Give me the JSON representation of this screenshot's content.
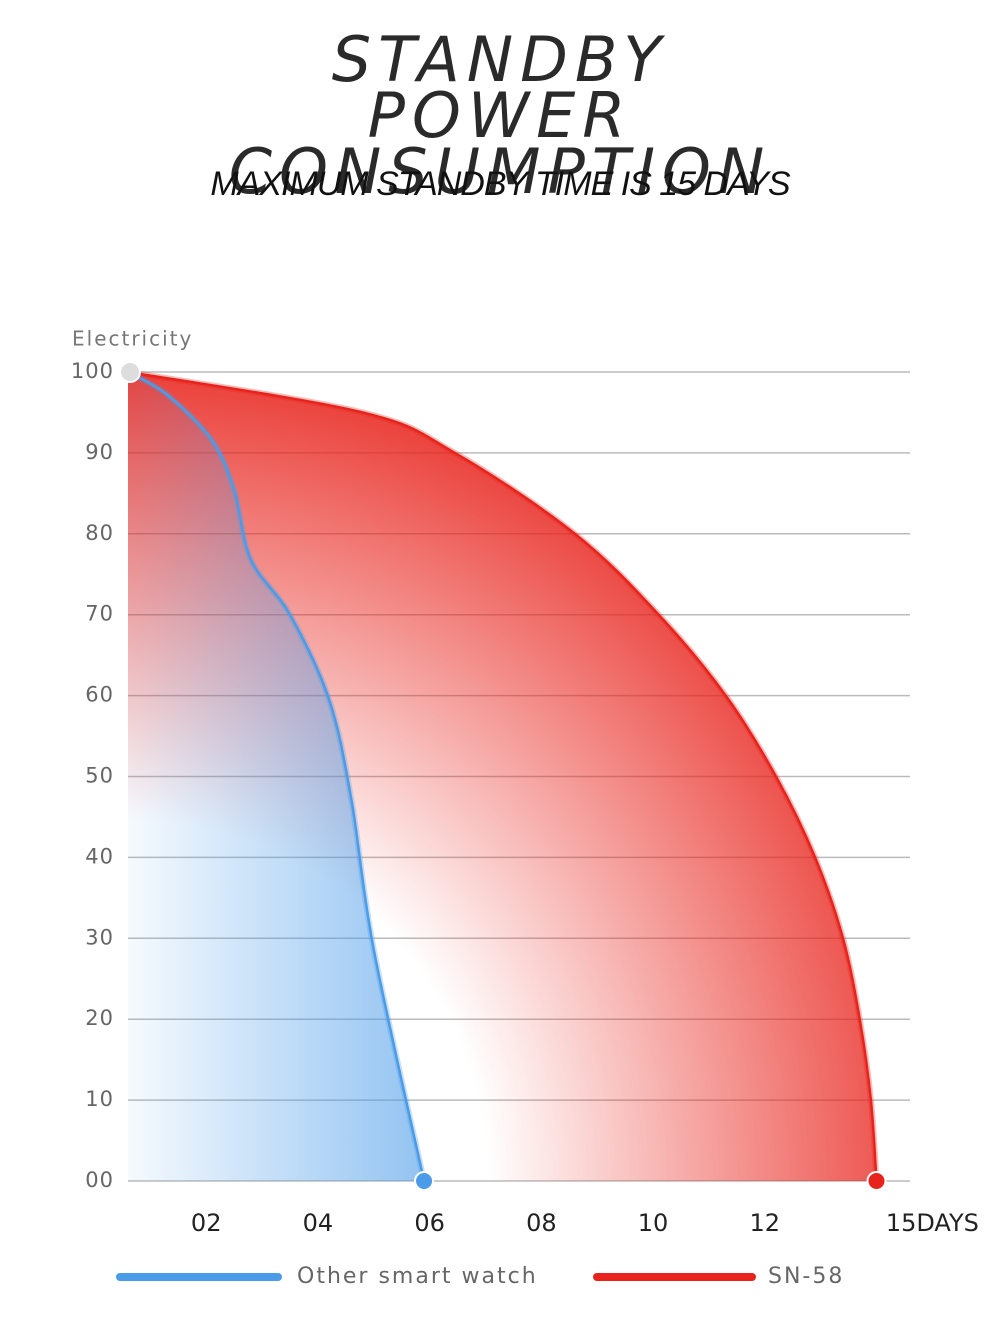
{
  "chart_data": {
    "type": "area",
    "title": "STANDBY POWER CONSUMPTION",
    "subtitle": "MAXIMUM STANDBY TIME IS 15 DAYS",
    "y_label": "Electricity",
    "xlim": [
      0.6,
      14.6
    ],
    "xticks": [
      {
        "value": 2,
        "label": "02"
      },
      {
        "value": 4,
        "label": "04"
      },
      {
        "value": 6,
        "label": "06"
      },
      {
        "value": 8,
        "label": "08"
      },
      10,
      12,
      {
        "value": 15,
        "label": "15DAYS"
      }
    ],
    "ylim": [
      0,
      100
    ],
    "yticks": [
      {
        "value": 0,
        "label": "00"
      },
      10,
      20,
      30,
      40,
      50,
      60,
      70,
      80,
      90,
      100
    ],
    "grid": true,
    "series": [
      {
        "name": "SN-58",
        "color": "#e8231c",
        "x": [
          0.6,
          4.8,
          6.45,
          8.6,
          10.1,
          11.3,
          12.2,
          12.9,
          13.4,
          13.7,
          13.9,
          14.0
        ],
        "values": [
          100,
          95,
          90,
          80,
          70,
          60,
          50,
          40,
          30,
          20,
          10,
          0
        ]
      },
      {
        "name": "Other smart watch",
        "color": "#4a9be8",
        "x": [
          0.6,
          1.3,
          2.1,
          2.5,
          2.8,
          3.5,
          4.2,
          4.6,
          5.0,
          5.9
        ],
        "values": [
          100,
          97.2,
          91.6,
          85.4,
          76.8,
          70,
          59.5,
          47.1,
          28.6,
          0
        ]
      }
    ]
  }
}
